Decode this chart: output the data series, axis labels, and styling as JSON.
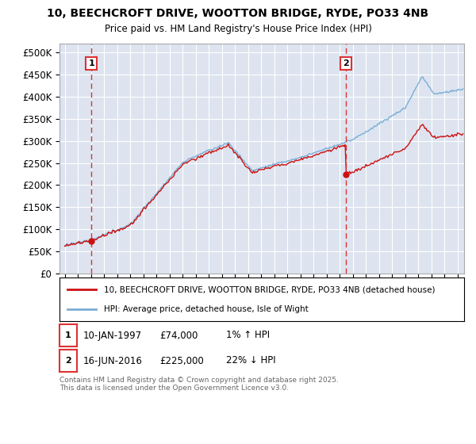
{
  "title_line1": "10, BEECHCROFT DRIVE, WOOTTON BRIDGE, RYDE, PO33 4NB",
  "title_line2": "Price paid vs. HM Land Registry's House Price Index (HPI)",
  "ylim": [
    0,
    520000
  ],
  "yticks": [
    0,
    50000,
    100000,
    150000,
    200000,
    250000,
    300000,
    350000,
    400000,
    450000,
    500000
  ],
  "ytick_labels": [
    "£0",
    "£50K",
    "£100K",
    "£150K",
    "£200K",
    "£250K",
    "£300K",
    "£350K",
    "£400K",
    "£450K",
    "£500K"
  ],
  "plot_bg_color": "#dde4f0",
  "grid_color": "#ffffff",
  "sale1_date": 1997.04,
  "sale1_price": 74000,
  "sale1_label": "1",
  "sale2_date": 2016.46,
  "sale2_price": 225000,
  "sale2_label": "2",
  "hpi_color": "#7aaed6",
  "price_color": "#cc1111",
  "dashed_color": "#dd3333",
  "legend_label1": "10, BEECHCROFT DRIVE, WOOTTON BRIDGE, RYDE, PO33 4NB (detached house)",
  "legend_label2": "HPI: Average price, detached house, Isle of Wight",
  "footnote": "Contains HM Land Registry data © Crown copyright and database right 2025.\nThis data is licensed under the Open Government Licence v3.0.",
  "xlim_start": 1994.6,
  "xlim_end": 2025.5
}
